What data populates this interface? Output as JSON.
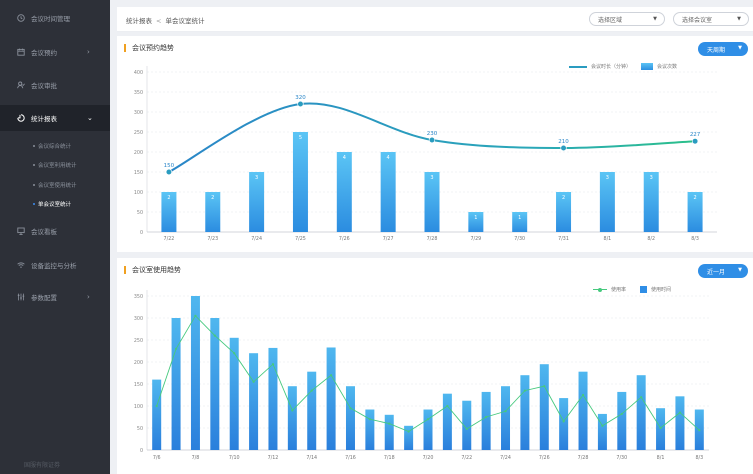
{
  "sidebar": {
    "items": [
      {
        "label": "会议时间管理",
        "icon": "clock-icon",
        "chevron": false
      },
      {
        "label": "会议预约",
        "icon": "calendar-icon",
        "chevron": true
      },
      {
        "label": "会议审批",
        "icon": "user-check-icon",
        "chevron": false
      },
      {
        "label": "统计报表",
        "icon": "chart-pie-icon",
        "chevron": true,
        "active": true
      },
      {
        "label": "会议看板",
        "icon": "board-icon",
        "chevron": false
      },
      {
        "label": "设备监控与分析",
        "icon": "wifi-icon",
        "chevron": false
      },
      {
        "label": "参数配置",
        "icon": "sliders-icon",
        "chevron": true
      }
    ],
    "sub_items": [
      {
        "label": "会议综合统计"
      },
      {
        "label": "会议室利用统计"
      },
      {
        "label": "会议室使用统计"
      },
      {
        "label": "单会议室统计",
        "active": true
      }
    ],
    "footer": "国服有限证券"
  },
  "header": {
    "breadcrumb_root": "统计报表",
    "breadcrumb_sep": "<",
    "breadcrumb_current": "单会议室统计",
    "select_region": "选择区域",
    "select_room": "选择会议室"
  },
  "panel1": {
    "title": "会议预约趋势",
    "range_button": "天周期",
    "legend_line": "会议时长（分钟）",
    "legend_bar": "会议次数"
  },
  "panel2": {
    "title": "会议室使用趋势",
    "range_button": "近一月",
    "legend_line": "使用率",
    "legend_bar": "使用时间"
  },
  "colors": {
    "accent": "#2f8ee6",
    "sidebar_bg": "#2d3038",
    "title_marker": "#f0a020",
    "line1": "#2a9cc0",
    "line2": "#46c97e"
  },
  "chart_data": [
    {
      "type": "bar",
      "title": "会议预约趋势",
      "categories": [
        "7/22",
        "7/23",
        "7/24",
        "7/25",
        "7/26",
        "7/27",
        "7/28",
        "7/29",
        "7/30",
        "7/31",
        "8/1",
        "8/2",
        "8/3"
      ],
      "y_ticks": [
        0,
        50,
        100,
        150,
        200,
        250,
        300,
        350,
        400
      ],
      "ylim": [
        0,
        400
      ],
      "series": [
        {
          "name": "会议次数",
          "type": "bar",
          "values": [
            2,
            2,
            3,
            5,
            4,
            4,
            3,
            1,
            1,
            2,
            3,
            3,
            2
          ],
          "plot_values": [
            100,
            100,
            150,
            250,
            200,
            200,
            150,
            50,
            50,
            100,
            150,
            150,
            100
          ]
        },
        {
          "name": "会议时长（分钟）",
          "type": "line",
          "points": [
            {
              "x": "7/22",
              "y": 150
            },
            {
              "x": "7/25",
              "y": 320
            },
            {
              "x": "7/28",
              "y": 230
            },
            {
              "x": "7/31",
              "y": 210
            },
            {
              "x": "8/3",
              "y": 227
            }
          ]
        }
      ]
    },
    {
      "type": "bar",
      "title": "会议室使用趋势",
      "categories": [
        "7/6",
        "",
        "7/8",
        "",
        "7/10",
        "",
        "7/12",
        "",
        "7/14",
        "",
        "7/16",
        "",
        "7/18",
        "",
        "7/20",
        "",
        "7/22",
        "",
        "7/24",
        "",
        "7/26",
        "",
        "7/28",
        "",
        "7/30",
        "",
        "8/1",
        "",
        "8/3"
      ],
      "y_ticks": [
        0,
        50,
        100,
        150,
        200,
        250,
        300,
        350
      ],
      "ylim": [
        0,
        350
      ],
      "series": [
        {
          "name": "使用时间",
          "type": "bar",
          "values": [
            160,
            300,
            350,
            300,
            255,
            220,
            232,
            145,
            178,
            233,
            145,
            92,
            80,
            55,
            92,
            128,
            112,
            132,
            145,
            170,
            195,
            118,
            178,
            82,
            132,
            170,
            95,
            122,
            92
          ]
        },
        {
          "name": "使用率",
          "type": "line",
          "values": [
            100,
            230,
            305,
            260,
            220,
            155,
            195,
            90,
            135,
            170,
            95,
            70,
            60,
            42,
            70,
            100,
            48,
            75,
            88,
            135,
            145,
            65,
            125,
            55,
            82,
            120,
            50,
            85,
            45
          ]
        }
      ]
    }
  ]
}
